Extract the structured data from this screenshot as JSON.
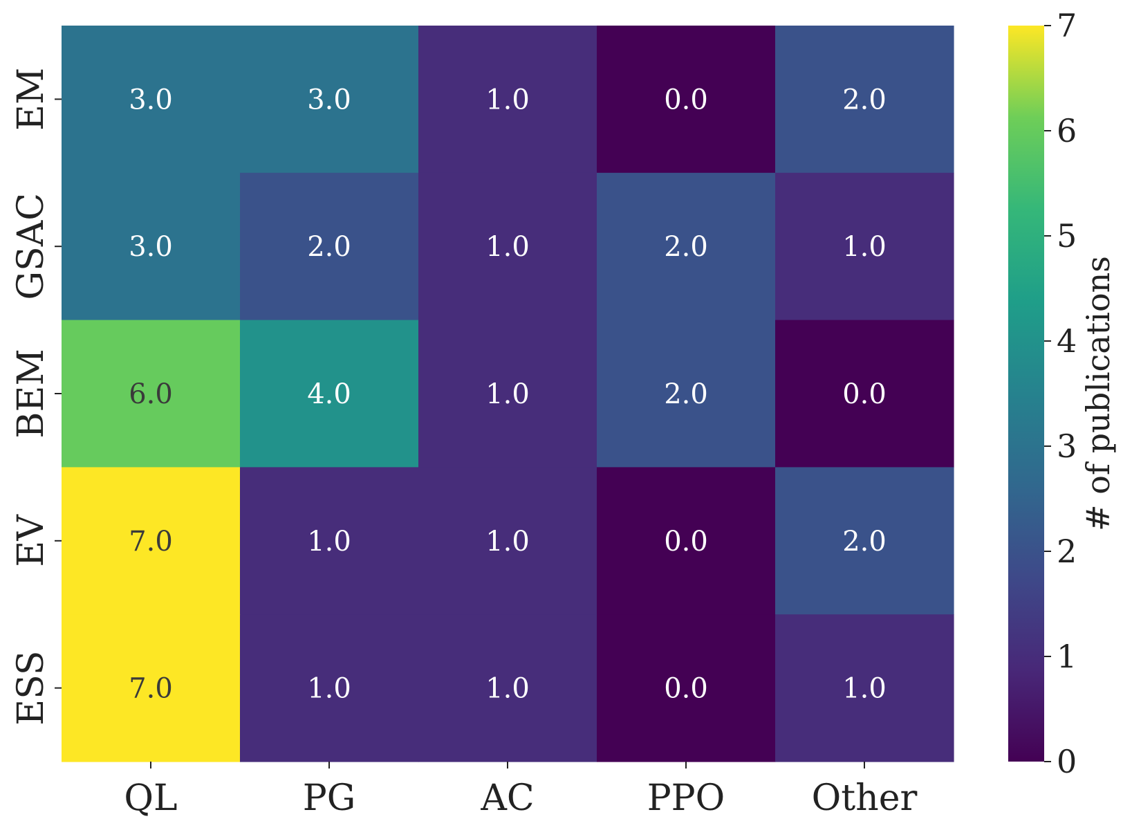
{
  "chart_data": {
    "type": "heatmap",
    "title": "",
    "xlabel": "",
    "ylabel": "",
    "x_categories": [
      "QL",
      "PG",
      "AC",
      "PPO",
      "Other"
    ],
    "y_categories": [
      "EM",
      "GSAC",
      "BEM",
      "EV",
      "ESS"
    ],
    "values": [
      [
        3,
        3,
        1,
        0,
        2
      ],
      [
        3,
        2,
        1,
        2,
        1
      ],
      [
        6,
        4,
        1,
        2,
        0
      ],
      [
        7,
        1,
        1,
        0,
        2
      ],
      [
        7,
        1,
        1,
        0,
        1
      ]
    ],
    "cell_labels": [
      [
        "3.0",
        "3.0",
        "1.0",
        "0.0",
        "2.0"
      ],
      [
        "3.0",
        "2.0",
        "1.0",
        "2.0",
        "1.0"
      ],
      [
        "6.0",
        "4.0",
        "1.0",
        "2.0",
        "0.0"
      ],
      [
        "7.0",
        "1.0",
        "1.0",
        "0.0",
        "2.0"
      ],
      [
        "7.0",
        "1.0",
        "1.0",
        "0.0",
        "1.0"
      ]
    ],
    "colorbar": {
      "label": "# of publications",
      "range": [
        0,
        7
      ],
      "ticks": [
        "0",
        "1",
        "2",
        "3",
        "4",
        "5",
        "6",
        "7"
      ],
      "colormap": "viridis"
    },
    "colors": {
      "text_light": "#ffffff",
      "text_dark": "#3a3a3a",
      "tick_color": "#222222"
    }
  }
}
